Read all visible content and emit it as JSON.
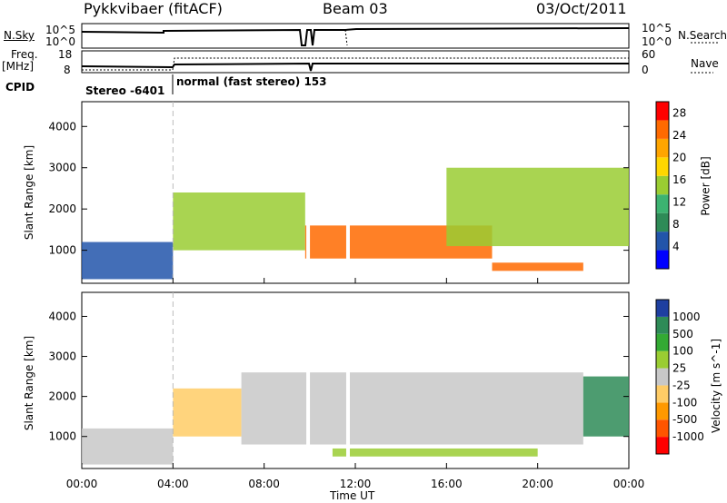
{
  "header": {
    "radar_title": "Pykkvibaer (fitACF)",
    "beam": "Beam 03",
    "date": "03/Oct/2011"
  },
  "aux_panels": {
    "nsky_label": "N.Sky",
    "nsky_ticks": [
      "10^5",
      "10^0"
    ],
    "nsearch_label": "N.Search",
    "nsearch_ticks": [
      "10^5",
      "10^0"
    ],
    "freq_label": "Freq.",
    "freq_unit": "[MHz]",
    "freq_ticks": [
      "18",
      "8"
    ],
    "nave_label": "Nave",
    "nave_ticks": [
      "60",
      "0"
    ],
    "cpid_label": "CPID",
    "cpid_segments": [
      {
        "text": "Stereo -6401",
        "start": "00:00",
        "end": "04:00"
      },
      {
        "text": "normal (fast stereo) 153",
        "start": "04:00",
        "end": "24:00"
      }
    ]
  },
  "x_axis": {
    "label": "Time UT",
    "ticks": [
      "00:00",
      "04:00",
      "08:00",
      "12:00",
      "16:00",
      "20:00",
      "00:00"
    ],
    "range_hours": [
      0,
      24
    ]
  },
  "chart_data": [
    {
      "type": "heatmap",
      "name": "power",
      "ylabel": "Slant Range [km]",
      "yticks": [
        "1000",
        "2000",
        "3000",
        "4000"
      ],
      "ylim": [
        200,
        4600
      ],
      "colorbar": {
        "label": "Power [dB]",
        "ticks": [
          "4",
          "8",
          "12",
          "16",
          "20",
          "24",
          "28"
        ],
        "range": [
          0,
          30
        ],
        "colors": [
          "#0000ff",
          "#2255aa",
          "#2e8b57",
          "#3cb371",
          "#9acd32",
          "#ffd700",
          "#ffa500",
          "#ff6a00",
          "#ff0000"
        ]
      },
      "regions": [
        {
          "t_start": 0.0,
          "t_end": 4.0,
          "r_min": 300,
          "r_max": 1200,
          "level_db": 6
        },
        {
          "t_start": 4.0,
          "t_end": 9.8,
          "r_min": 1000,
          "r_max": 2400,
          "level_db": 16
        },
        {
          "t_start": 9.8,
          "t_end": 18.0,
          "r_min": 800,
          "r_max": 1600,
          "level_db": 26
        },
        {
          "t_start": 16.0,
          "t_end": 24.0,
          "r_min": 1100,
          "r_max": 3000,
          "level_db": 14
        },
        {
          "t_start": 18.0,
          "t_end": 22.0,
          "r_min": 500,
          "r_max": 700,
          "level_db": 24
        }
      ]
    },
    {
      "type": "heatmap",
      "name": "velocity",
      "ylabel": "Slant Range [km]",
      "yticks": [
        "1000",
        "2000",
        "3000",
        "4000"
      ],
      "ylim": [
        200,
        4600
      ],
      "colorbar": {
        "label": "Velocity [m s^-1]",
        "ticks": [
          "1000",
          "500",
          "100",
          "25",
          "-25",
          "-100",
          "-500",
          "-1000"
        ],
        "range": [
          -1200,
          1200
        ],
        "colors": [
          "#ff0000",
          "#ff5500",
          "#ff9900",
          "#ffcc66",
          "#c8c8c8",
          "#9acd32",
          "#33aa33",
          "#2e8b57",
          "#1e3fa0"
        ]
      },
      "regions": [
        {
          "t_start": 0.0,
          "t_end": 4.0,
          "r_min": 300,
          "r_max": 1200,
          "velocity": -100
        },
        {
          "t_start": 4.0,
          "t_end": 7.0,
          "r_min": 1000,
          "r_max": 2200,
          "velocity": -300
        },
        {
          "t_start": 7.0,
          "t_end": 22.0,
          "r_min": 800,
          "r_max": 2600,
          "velocity": 0
        },
        {
          "t_start": 11.0,
          "t_end": 20.0,
          "r_min": 500,
          "r_max": 700,
          "velocity": 150
        },
        {
          "t_start": 22.0,
          "t_end": 24.0,
          "r_min": 1000,
          "r_max": 2500,
          "velocity": 700
        }
      ]
    }
  ]
}
